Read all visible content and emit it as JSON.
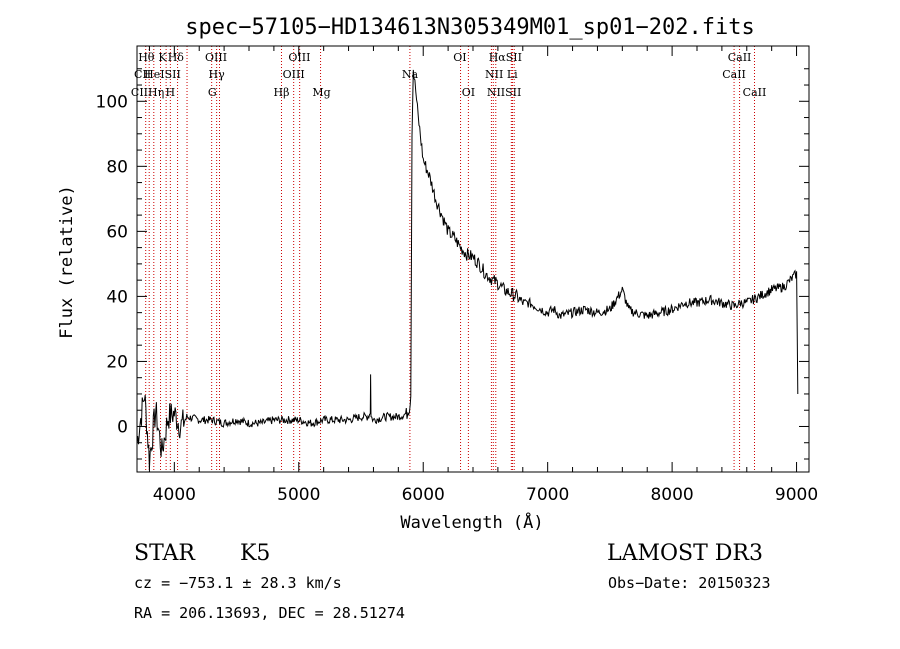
{
  "chart_data": {
    "type": "line",
    "title": "spec−57105−HD134613N305349M01_sp01−202.fits",
    "xlabel": "Wavelength (Å)",
    "ylabel": "Flux (relative)",
    "xlim": [
      3700,
      9100
    ],
    "ylim": [
      -14,
      117
    ],
    "xticks": [
      4000,
      5000,
      6000,
      7000,
      8000,
      9000
    ],
    "yticks": [
      0,
      20,
      40,
      60,
      80,
      100
    ],
    "grid": false,
    "series": [
      {
        "color": "#000000",
        "x": [
          3700,
          3760,
          3800,
          3850,
          3900,
          3950,
          4000,
          4050,
          4100,
          4200,
          4300,
          4400,
          4500,
          4600,
          4700,
          4800,
          4900,
          5000,
          5100,
          5200,
          5300,
          5400,
          5500,
          5550,
          5575,
          5577,
          5580,
          5600,
          5700,
          5800,
          5870,
          5890,
          5900,
          5910,
          5920,
          5940,
          5960,
          6000,
          6050,
          6100,
          6150,
          6200,
          6250,
          6300,
          6350,
          6400,
          6450,
          6500,
          6560,
          6600,
          6650,
          6700,
          6750,
          6800,
          6850,
          6900,
          6950,
          7000,
          7050,
          7100,
          7200,
          7300,
          7400,
          7500,
          7600,
          7650,
          7700,
          7800,
          7900,
          8000,
          8100,
          8200,
          8300,
          8400,
          8500,
          8550,
          8600,
          8700,
          8800,
          8900,
          8950,
          9000,
          9010
        ],
        "values": [
          -5,
          10,
          -10,
          5,
          -8,
          3,
          4,
          0,
          3,
          2,
          2,
          1,
          2,
          1,
          1,
          2,
          2,
          2,
          1,
          2,
          2,
          2,
          3,
          3,
          4,
          16,
          3,
          2,
          3,
          3,
          4,
          6,
          10,
          90,
          110,
          103,
          95,
          82,
          77,
          70,
          65,
          60,
          58,
          55,
          53,
          52,
          50,
          47,
          45,
          44,
          42,
          41,
          40,
          38,
          38,
          37,
          36,
          35,
          36,
          34,
          35,
          36,
          35,
          36,
          42,
          36,
          35,
          34,
          35,
          36,
          38,
          38,
          39,
          38,
          37,
          38,
          38,
          40,
          42,
          43,
          45,
          47,
          10
        ]
      }
    ],
    "lines": {
      "labels": [
        {
          "text": "Hθ",
          "row": 1,
          "x": 3775
        },
        {
          "text": "K",
          "row": 1,
          "x": 3905
        },
        {
          "text": "Hδ",
          "row": 1,
          "x": 4012
        },
        {
          "text": "OIII",
          "row": 1,
          "x": 4335
        },
        {
          "text": "OIII",
          "row": 1,
          "x": 5005
        },
        {
          "text": "OI",
          "row": 1,
          "x": 6295
        },
        {
          "text": "HαSII",
          "row": 1,
          "x": 6660
        },
        {
          "text": "CaII",
          "row": 1,
          "x": 8542
        },
        {
          "text": "CII",
          "row": 2,
          "x": 3745
        },
        {
          "text": "HeISII",
          "row": 2,
          "x": 3905
        },
        {
          "text": "Hγ",
          "row": 2,
          "x": 4340
        },
        {
          "text": "OIII",
          "row": 2,
          "x": 4959
        },
        {
          "text": "Na",
          "row": 2,
          "x": 5893
        },
        {
          "text": "NII Li",
          "row": 2,
          "x": 6628
        },
        {
          "text": "CaII",
          "row": 2,
          "x": 8498
        },
        {
          "text": "CIIHη",
          "row": 3,
          "x": 3785
        },
        {
          "text": "H",
          "row": 3,
          "x": 3968
        },
        {
          "text": "G",
          "row": 3,
          "x": 4305
        },
        {
          "text": "Hβ",
          "row": 3,
          "x": 4861
        },
        {
          "text": "Mg",
          "row": 3,
          "x": 5183
        },
        {
          "text": "OI",
          "row": 3,
          "x": 6363
        },
        {
          "text": "NIISII",
          "row": 3,
          "x": 6650
        },
        {
          "text": "CaII",
          "row": 3,
          "x": 8662
        }
      ],
      "positions": [
        3770,
        3798,
        3835,
        3889,
        3934,
        3968,
        4026,
        4102,
        4300,
        4340,
        4363,
        4861,
        4959,
        5007,
        5175,
        5893,
        6300,
        6363,
        6548,
        6563,
        6583,
        6708,
        6717,
        6731,
        8498,
        8542,
        8662
      ],
      "color": "#cc0000"
    }
  },
  "info": {
    "class_label": "STAR",
    "subclass": "K5",
    "survey": "LAMOST DR3",
    "cz_text": "cz = −753.1 ± 28.3 km/s",
    "obs_date_text": "Obs−Date: 20150323",
    "radec_text": "RA = 206.13693, DEC =  28.51274"
  }
}
